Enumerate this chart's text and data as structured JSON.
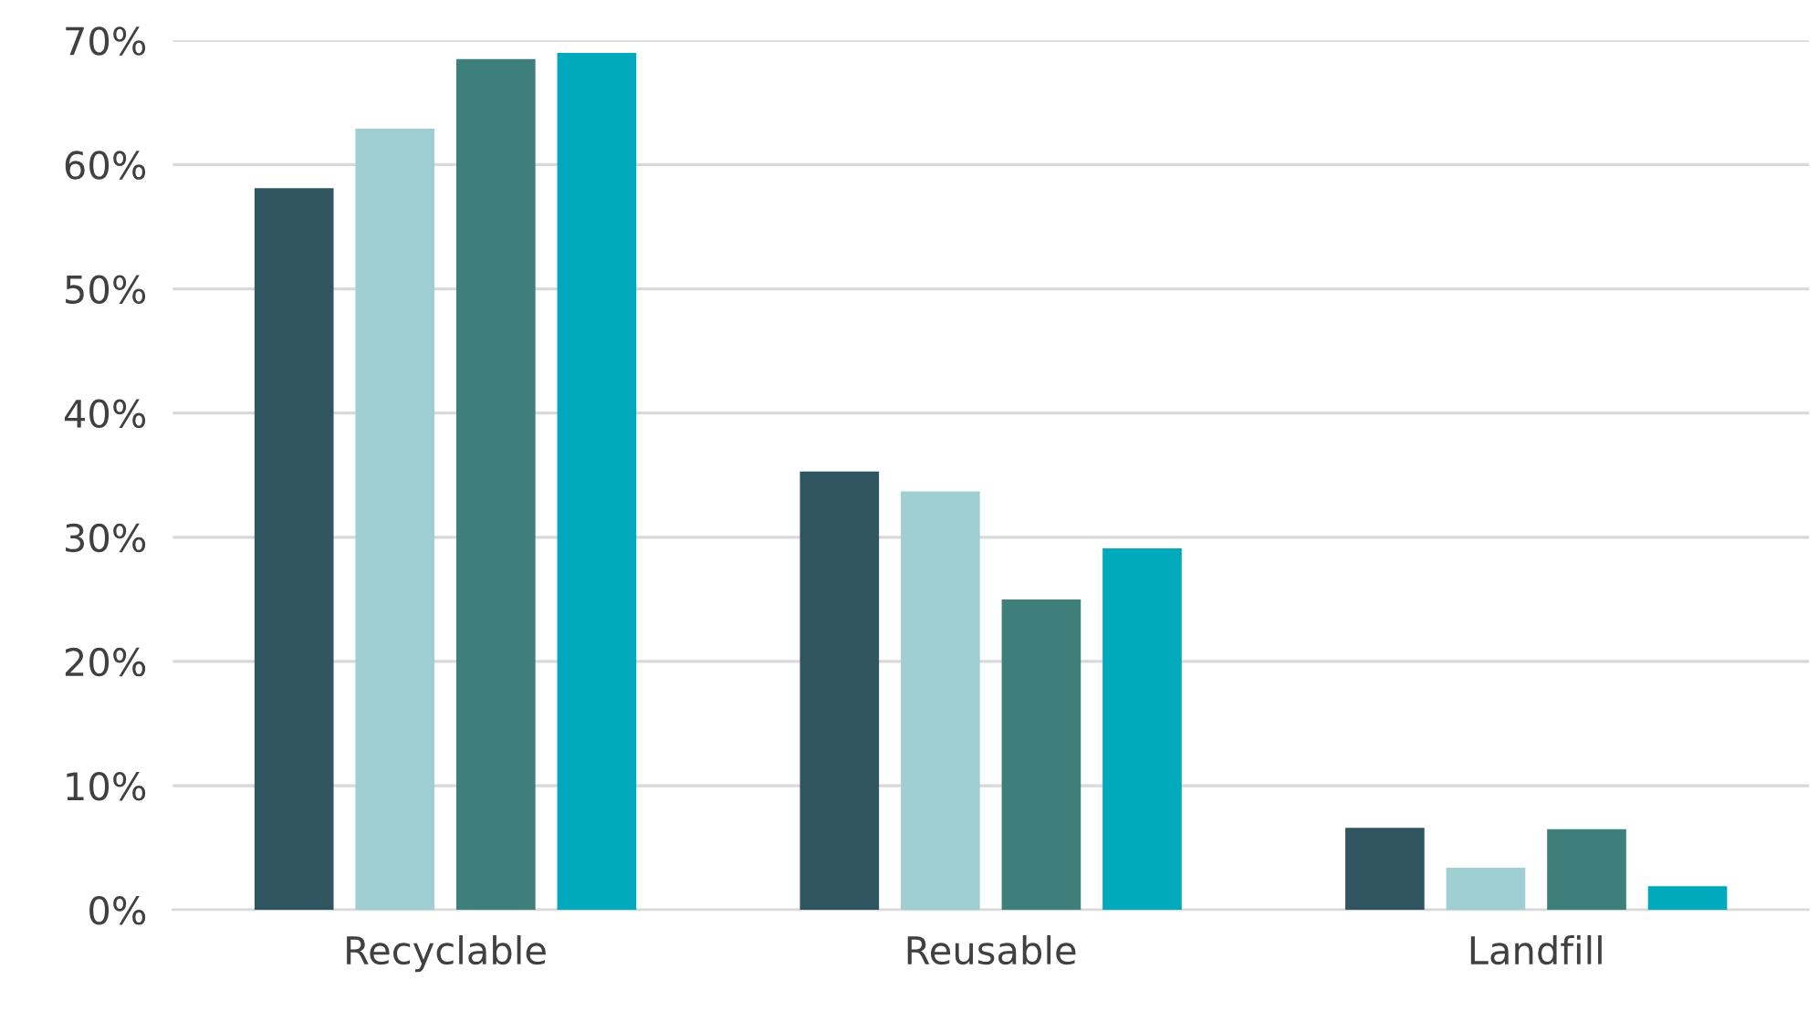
{
  "chart_data": {
    "type": "bar",
    "categories": [
      "Recyclable",
      "Reusable",
      "Landfill"
    ],
    "series": [
      {
        "color": "#2f5560",
        "values": [
          58.1,
          35.3,
          6.6
        ]
      },
      {
        "color": "#9fcfd3",
        "values": [
          62.9,
          33.7,
          3.4
        ]
      },
      {
        "color": "#3e7f7c",
        "values": [
          68.5,
          25.0,
          6.5
        ]
      },
      {
        "color": "#00a9bc",
        "values": [
          69.0,
          29.1,
          1.9
        ]
      }
    ],
    "ylim": [
      0,
      70
    ],
    "yticks": [
      {
        "value": 0,
        "label": "0%"
      },
      {
        "value": 10,
        "label": "10%"
      },
      {
        "value": 20,
        "label": "20%"
      },
      {
        "value": 30,
        "label": "30%"
      },
      {
        "value": 40,
        "label": "40%"
      },
      {
        "value": 50,
        "label": "50%"
      },
      {
        "value": 60,
        "label": "60%"
      },
      {
        "value": 70,
        "label": "70%"
      }
    ],
    "grid": "y"
  }
}
